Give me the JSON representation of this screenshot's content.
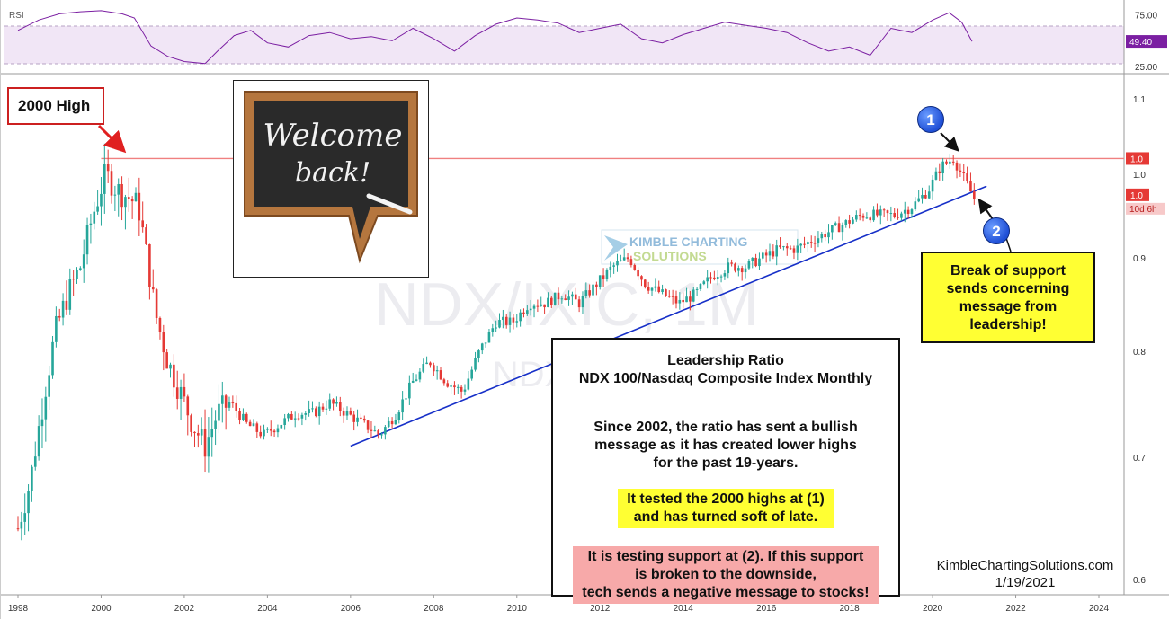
{
  "annotations": {
    "high_label": "2000 High",
    "break_note": [
      "Break of support",
      "sends concerning",
      "message from",
      "leadership!"
    ],
    "marker1": "1",
    "marker2": "2",
    "info_title_1": "Leadership Ratio",
    "info_title_2": "NDX 100/Nasdaq Composite Index Monthly",
    "info_para": [
      "Since 2002, the ratio has sent a bullish",
      "message as it has created lower highs",
      "for the past 19-years."
    ],
    "info_yellow": [
      "It tested the 2000 highs at (1)",
      "and has turned soft of late."
    ],
    "info_red": [
      "It is testing support at (2). If this support",
      "is broken to the downside,",
      "tech sends a negative message to stocks!"
    ],
    "welcome_image_text": [
      "Welcome",
      "back!"
    ],
    "credit_site": "KimbleChartingSolutions.com",
    "credit_date": "1/19/2021",
    "watermark_symbol": "NDX/IXIC, 1M",
    "watermark_sub": "NDX",
    "logo_text": [
      "KIMBLE CHARTING",
      "SOLUTIONS"
    ]
  },
  "chart_data": [
    {
      "type": "line",
      "title": "RSI",
      "x": [
        1998.0,
        1998.5,
        1999.0,
        1999.5,
        2000.0,
        2000.5,
        2000.8,
        2001.2,
        2001.6,
        2002.0,
        2002.5,
        2002.8,
        2003.2,
        2003.6,
        2004.0,
        2004.5,
        2005.0,
        2005.5,
        2006.0,
        2006.5,
        2007.0,
        2007.5,
        2008.0,
        2008.5,
        2009.0,
        2009.5,
        2010.0,
        2010.5,
        2011.0,
        2011.5,
        2012.0,
        2012.5,
        2013.0,
        2013.5,
        2014.0,
        2014.5,
        2015.0,
        2015.5,
        2016.0,
        2016.5,
        2017.0,
        2017.5,
        2018.0,
        2018.5,
        2019.0,
        2019.5,
        2020.0,
        2020.4,
        2020.7,
        2020.95
      ],
      "values": [
        60,
        70,
        76,
        78,
        79,
        76,
        72,
        45,
        35,
        30,
        28,
        40,
        55,
        60,
        48,
        44,
        55,
        58,
        52,
        54,
        50,
        62,
        52,
        40,
        55,
        66,
        72,
        70,
        67,
        58,
        62,
        66,
        52,
        48,
        56,
        62,
        68,
        65,
        62,
        58,
        48,
        40,
        44,
        36,
        62,
        58,
        70,
        77,
        68,
        49.4
      ],
      "yticks": [
        "75.00",
        "25.00"
      ],
      "ylim": [
        20,
        85
      ],
      "last_value_label": "49.40",
      "last_value": 49.4
    },
    {
      "type": "candlestick",
      "title": "",
      "x": [
        1998.0,
        1998.3,
        1998.6,
        1998.9,
        1999.2,
        1999.5,
        1999.8,
        2000.1,
        2000.4,
        2000.7,
        2000.9,
        2001.1,
        2001.3,
        2001.6,
        2001.9,
        2002.2,
        2002.5,
        2002.8,
        2003.1,
        2003.5,
        2003.9,
        2004.3,
        2004.7,
        2005.1,
        2005.5,
        2005.9,
        2006.3,
        2006.7,
        2007.1,
        2007.5,
        2007.9,
        2008.3,
        2008.7,
        2009.1,
        2009.5,
        2009.9,
        2010.3,
        2010.7,
        2011.1,
        2011.5,
        2011.9,
        2012.3,
        2012.7,
        2013.1,
        2013.5,
        2013.9,
        2014.3,
        2014.7,
        2015.1,
        2015.5,
        2015.9,
        2016.3,
        2016.7,
        2017.1,
        2017.5,
        2017.9,
        2018.3,
        2018.7,
        2019.1,
        2019.5,
        2019.9,
        2020.2,
        2020.5,
        2020.8,
        2021.0
      ],
      "values": [
        0.64,
        0.68,
        0.75,
        0.82,
        0.86,
        0.89,
        0.95,
        1.0,
        0.98,
        0.97,
        0.96,
        0.9,
        0.84,
        0.79,
        0.76,
        0.73,
        0.71,
        0.74,
        0.75,
        0.73,
        0.72,
        0.73,
        0.74,
        0.74,
        0.75,
        0.74,
        0.73,
        0.72,
        0.74,
        0.77,
        0.79,
        0.77,
        0.76,
        0.8,
        0.83,
        0.83,
        0.85,
        0.85,
        0.86,
        0.85,
        0.87,
        0.89,
        0.9,
        0.87,
        0.86,
        0.85,
        0.86,
        0.88,
        0.89,
        0.89,
        0.9,
        0.91,
        0.91,
        0.92,
        0.93,
        0.94,
        0.95,
        0.95,
        0.95,
        0.96,
        0.98,
        1.01,
        1.02,
        0.99,
        0.97
      ],
      "xticks": [
        "1998",
        "2000",
        "2002",
        "2004",
        "2006",
        "2008",
        "2010",
        "2012",
        "2014",
        "2016",
        "2018",
        "2020",
        "2022",
        "2024"
      ],
      "yticks": [
        "1.1",
        "1.0",
        "0.9",
        "0.8",
        "0.7",
        "0.6"
      ],
      "ylim": [
        0.59,
        1.13
      ],
      "log_scale": true,
      "resistance_level": 1.02,
      "resistance_label": "1.0",
      "support_trendline": [
        [
          2006.0,
          0.71
        ],
        [
          2021.3,
          0.985
        ]
      ],
      "last_price_label": "1.0",
      "countdown_label": "10d 6h"
    }
  ],
  "colors": {
    "up_candle": "#26a69a",
    "down_candle": "#e53935",
    "rsi_line": "#7b1fa2",
    "rsi_band": "#f1e6f6",
    "resistance": "#f08080",
    "trendline": "#1730c8",
    "marker": "#2a5ce6"
  }
}
